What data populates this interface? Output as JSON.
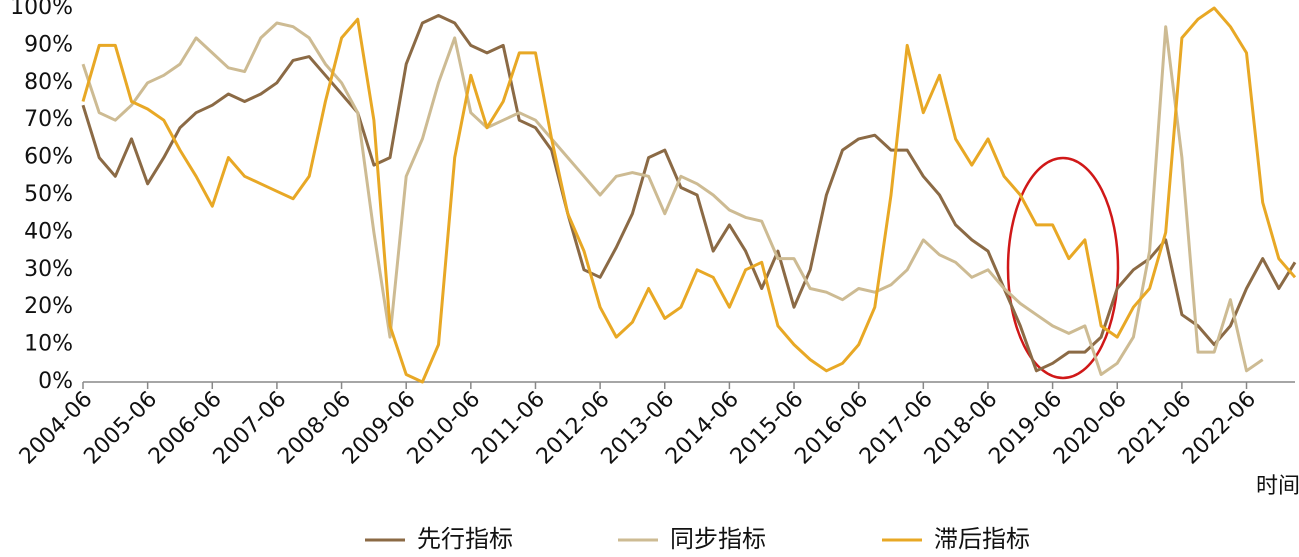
{
  "chart_data": {
    "type": "line",
    "x": [
      "2004-06",
      "2004-09",
      "2004-12",
      "2005-03",
      "2005-06",
      "2005-09",
      "2005-12",
      "2006-03",
      "2006-06",
      "2006-09",
      "2006-12",
      "2007-03",
      "2007-06",
      "2007-09",
      "2007-12",
      "2008-03",
      "2008-06",
      "2008-09",
      "2008-12",
      "2009-03",
      "2009-06",
      "2009-09",
      "2009-12",
      "2010-03",
      "2010-06",
      "2010-09",
      "2010-12",
      "2011-03",
      "2011-06",
      "2011-09",
      "2011-12",
      "2012-03",
      "2012-06",
      "2012-09",
      "2012-12",
      "2013-03",
      "2013-06",
      "2013-09",
      "2013-12",
      "2014-03",
      "2014-06",
      "2014-09",
      "2014-12",
      "2015-03",
      "2015-06",
      "2015-09",
      "2015-12",
      "2016-03",
      "2016-06",
      "2016-09",
      "2016-12",
      "2017-03",
      "2017-06",
      "2017-09",
      "2017-12",
      "2018-03",
      "2018-06",
      "2018-09",
      "2018-12",
      "2019-03",
      "2019-06",
      "2019-09",
      "2019-12",
      "2020-03",
      "2020-06",
      "2020-09",
      "2020-12",
      "2021-03",
      "2021-06",
      "2021-09",
      "2021-12",
      "2022-03",
      "2022-06",
      "2022-09",
      "2022-12",
      "2023-03"
    ],
    "series": [
      {
        "name": "先行指标",
        "color": "#8b6a45",
        "values": [
          74,
          60,
          55,
          65,
          53,
          60,
          68,
          72,
          74,
          77,
          75,
          77,
          80,
          86,
          87,
          82,
          77,
          72,
          58,
          60,
          85,
          96,
          98,
          96,
          90,
          88,
          90,
          70,
          68,
          62,
          45,
          30,
          28,
          36,
          45,
          60,
          62,
          52,
          50,
          35,
          42,
          35,
          25,
          35,
          20,
          30,
          50,
          62,
          65,
          66,
          62,
          62,
          55,
          50,
          42,
          38,
          35,
          25,
          15,
          3,
          5,
          8,
          8,
          12,
          25,
          30,
          33,
          38,
          18,
          15,
          10,
          15,
          25,
          33,
          25,
          32
        ]
      },
      {
        "name": "同步指标",
        "color": "#cdbb93",
        "values": [
          85,
          72,
          70,
          74,
          80,
          82,
          85,
          92,
          88,
          84,
          83,
          92,
          96,
          95,
          92,
          85,
          80,
          72,
          40,
          12,
          55,
          65,
          80,
          92,
          72,
          68,
          70,
          72,
          70,
          65,
          60,
          55,
          50,
          55,
          56,
          55,
          45,
          55,
          53,
          50,
          46,
          44,
          43,
          33,
          33,
          25,
          24,
          22,
          25,
          24,
          26,
          30,
          38,
          34,
          32,
          28,
          30,
          25,
          21,
          18,
          15,
          13,
          15,
          2,
          5,
          12,
          35,
          95,
          60,
          8,
          8,
          22,
          3,
          6,
          null,
          null
        ]
      },
      {
        "name": "滞后指标",
        "color": "#e8a825",
        "values": [
          75,
          90,
          90,
          75,
          73,
          70,
          62,
          55,
          47,
          60,
          55,
          53,
          51,
          49,
          55,
          75,
          92,
          97,
          70,
          15,
          2,
          0,
          10,
          60,
          82,
          68,
          75,
          88,
          88,
          65,
          45,
          35,
          20,
          12,
          16,
          25,
          17,
          20,
          30,
          28,
          20,
          30,
          32,
          15,
          10,
          6,
          3,
          5,
          10,
          20,
          50,
          90,
          72,
          82,
          65,
          58,
          65,
          55,
          50,
          42,
          42,
          33,
          38,
          15,
          12,
          20,
          25,
          40,
          92,
          97,
          100,
          95,
          88,
          48,
          33,
          28
        ]
      }
    ],
    "xlim": [
      "2004-06",
      "2023-03"
    ],
    "xticks": [
      "2004-06",
      "2005-06",
      "2006-06",
      "2007-06",
      "2008-06",
      "2009-06",
      "2010-06",
      "2011-06",
      "2012-06",
      "2013-06",
      "2014-06",
      "2015-06",
      "2016-06",
      "2017-06",
      "2018-06",
      "2019-06",
      "2020-06",
      "2021-06",
      "2022-06"
    ],
    "ylim": [
      0,
      100
    ],
    "yticks": [
      {
        "value": 0,
        "label": "0%"
      },
      {
        "value": 10,
        "label": "10%"
      },
      {
        "value": 20,
        "label": "20%"
      },
      {
        "value": 30,
        "label": "30%"
      },
      {
        "value": 40,
        "label": "40%"
      },
      {
        "value": 50,
        "label": "50%"
      },
      {
        "value": 60,
        "label": "60%"
      },
      {
        "value": 70,
        "label": "70%"
      },
      {
        "value": 80,
        "label": "80%"
      },
      {
        "value": 90,
        "label": "90%"
      },
      {
        "value": 100,
        "label": "100%"
      }
    ],
    "x_label": "时间",
    "grid": false
  }
}
